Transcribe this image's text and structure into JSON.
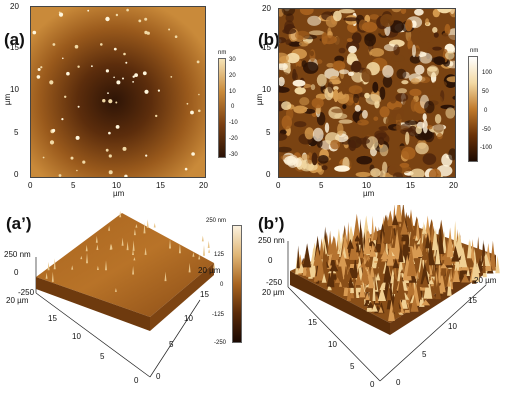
{
  "panels": {
    "a": {
      "label": "(a)",
      "xticks": [
        "0",
        "5",
        "10",
        "15",
        "20"
      ],
      "yticks": [
        "0",
        "5",
        "10",
        "15",
        "20"
      ],
      "xunit": "µm",
      "yunit": "µm",
      "colorbar": {
        "unit": "nm",
        "ticks": [
          "30",
          "20",
          "10",
          "0",
          "-10",
          "-20",
          "-30"
        ]
      }
    },
    "b": {
      "label": "(b)",
      "xticks": [
        "0",
        "5",
        "10",
        "15",
        "20"
      ],
      "yticks": [
        "0",
        "5",
        "10",
        "15",
        "20"
      ],
      "xunit": "µm",
      "yunit": "µm",
      "colorbar": {
        "unit": "nm",
        "ticks": [
          "100",
          "50",
          "0",
          "-50",
          "-100"
        ]
      }
    },
    "a3": {
      "label": "(a’)",
      "z_top": "250 nm",
      "z_mid": "0",
      "z_bot": "-250",
      "y_end": "20 µm",
      "x_end": "20 µm",
      "left_ticks": [
        "15",
        "10",
        "5",
        "0"
      ],
      "right_ticks": [
        "15",
        "10",
        "5",
        "0"
      ],
      "colorbar": {
        "ticks": [
          "250 nm",
          "125",
          "0",
          "-125",
          "-250"
        ]
      }
    },
    "b3": {
      "label": "(b’)",
      "z_top": "250 nm",
      "z_mid": "0",
      "z_bot": "-250",
      "y_end": "20 µm",
      "x_end": "20 µm",
      "left_ticks": [
        "15",
        "10",
        "5",
        "0"
      ],
      "right_ticks": [
        "15",
        "10",
        "5",
        "0"
      ]
    }
  },
  "colors": {
    "afm_dark": "#2a1205",
    "afm_mid": "#9a5a1c",
    "afm_light": "#f6e4b8"
  }
}
